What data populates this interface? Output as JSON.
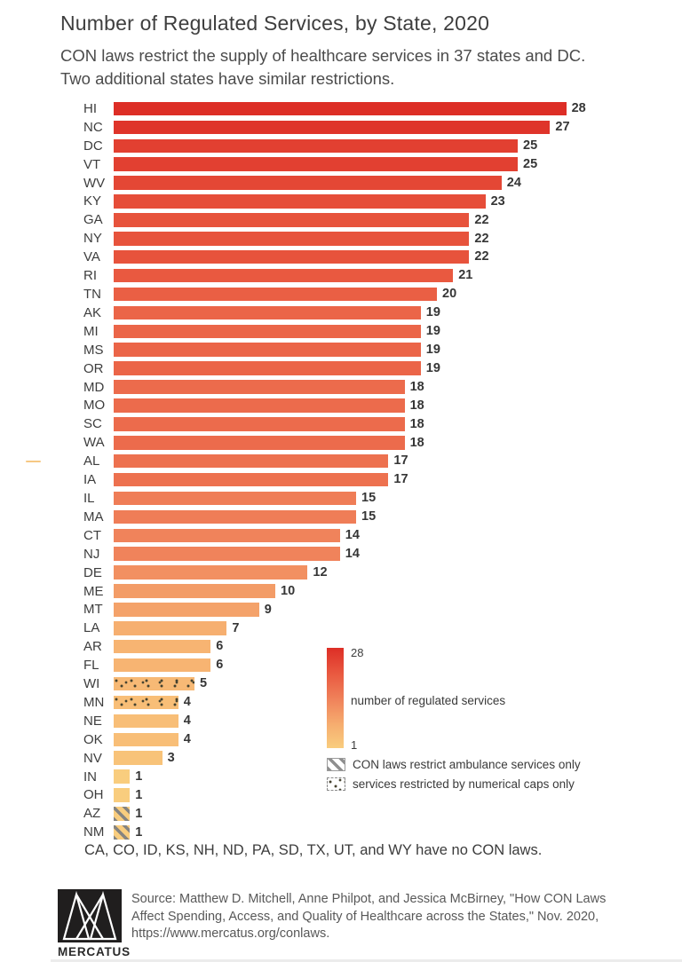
{
  "title": "Number of Regulated Services, by State, 2020",
  "subtitle_lines": [
    "CON laws restrict the supply of healthcare services in 37 states and DC.",
    "Two additional states have similar restrictions."
  ],
  "chart_data": {
    "type": "bar",
    "orientation": "horizontal",
    "title": "Number of Regulated Services, by State, 2020",
    "xlabel": "number of regulated services",
    "xlim": [
      0,
      28
    ],
    "categories": [
      "HI",
      "NC",
      "DC",
      "VT",
      "WV",
      "KY",
      "GA",
      "NY",
      "VA",
      "RI",
      "TN",
      "AK",
      "MI",
      "MS",
      "OR",
      "MD",
      "MO",
      "SC",
      "WA",
      "AL",
      "IA",
      "IL",
      "MA",
      "CT",
      "NJ",
      "DE",
      "ME",
      "MT",
      "LA",
      "AR",
      "FL",
      "WI",
      "MN",
      "NE",
      "OK",
      "NV",
      "IN",
      "OH",
      "AZ",
      "NM"
    ],
    "values": [
      28,
      27,
      25,
      25,
      24,
      23,
      22,
      22,
      22,
      21,
      20,
      19,
      19,
      19,
      19,
      18,
      18,
      18,
      18,
      17,
      17,
      15,
      15,
      14,
      14,
      12,
      10,
      9,
      7,
      6,
      6,
      5,
      4,
      4,
      4,
      3,
      1,
      1,
      1,
      1
    ],
    "patterns": {
      "WI": "caps",
      "MN": "caps",
      "AZ": "ambulance",
      "NM": "ambulance"
    },
    "colorbar": {
      "label": "number of regulated services",
      "max_label": "28",
      "min_label": "1",
      "anchors": [
        {
          "v": 28,
          "c": "#DD2E26"
        },
        {
          "v": 21,
          "c": "#E95940"
        },
        {
          "v": 14,
          "c": "#F0835B"
        },
        {
          "v": 7,
          "c": "#F6AF70"
        },
        {
          "v": 1,
          "c": "#F9CD7E"
        }
      ]
    },
    "pattern_legend": [
      {
        "pattern": "ambulance",
        "label": "CON laws restrict ambulance services only"
      },
      {
        "pattern": "caps",
        "label": "services restricted by numerical caps only"
      }
    ]
  },
  "note": "CA, CO, ID, KS, NH, ND, PA, SD, TX, UT, and WY have no CON laws.",
  "footer": {
    "logo_text": "MERCATUS",
    "source_lines": [
      "Source: Matthew D. Mitchell, Anne Philpot, and Jessica McBirney, \"How CON Laws",
      "Affect Spending, Access, and Quality of Healthcare across the States,\" Nov. 2020,",
      "https://www.mercatus.org/conlaws."
    ]
  }
}
